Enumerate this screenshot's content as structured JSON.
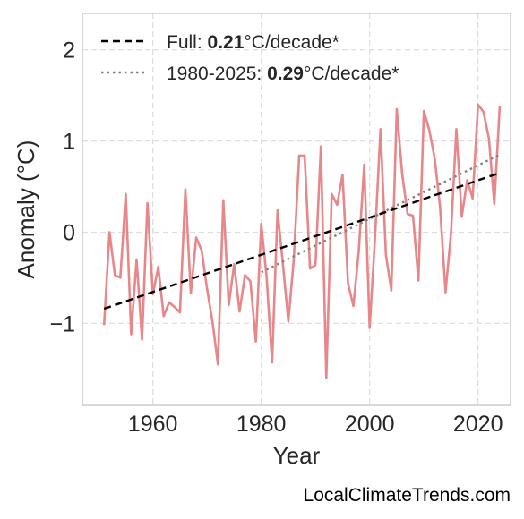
{
  "credit": "LocalClimateTrends.com",
  "colors": {
    "series": "#e8878a",
    "trend_full": "#000000",
    "trend_recent": "#808080",
    "grid": "#dddddd",
    "frame": "#cccccc",
    "text": "#262626"
  },
  "legend": {
    "placement": "top-left",
    "entries": [
      {
        "prefix": "Full: ",
        "value": "0.21",
        "suffix": "°C/decade*"
      },
      {
        "prefix": "1980-2025: ",
        "value": "0.29",
        "suffix": "°C/decade*"
      }
    ]
  },
  "chart_data": {
    "type": "line",
    "title": "",
    "xlabel": "Year",
    "ylabel": "Anomaly (°C)",
    "xlim": [
      1947,
      2026
    ],
    "ylim": [
      -1.9,
      2.4
    ],
    "xticks": [
      1960,
      1980,
      2000,
      2020
    ],
    "xtick_labels": [
      "1960",
      "1980",
      "2000",
      "2020"
    ],
    "yticks": [
      -1,
      0,
      1,
      2
    ],
    "ytick_labels": [
      "−1",
      "0",
      "1",
      "2"
    ],
    "grid": true,
    "series": [
      {
        "x": [
          1951,
          1952,
          1953,
          1954,
          1955,
          1956,
          1957,
          1958,
          1959,
          1960,
          1961,
          1962,
          1963,
          1964,
          1965,
          1966,
          1967,
          1968,
          1969,
          1970,
          1971,
          1972,
          1973,
          1974,
          1975,
          1976,
          1977,
          1978,
          1979,
          1980,
          1981,
          1982,
          1983,
          1984,
          1985,
          1986,
          1987,
          1988,
          1989,
          1990,
          1991,
          1992,
          1993,
          1994,
          1995,
          1996,
          1997,
          1998,
          1999,
          2000,
          2001,
          2002,
          2003,
          2004,
          2005,
          2006,
          2007,
          2008,
          2009,
          2010,
          2011,
          2012,
          2013,
          2014,
          2015,
          2016,
          2017,
          2018,
          2019,
          2020,
          2021,
          2022,
          2023,
          2024
        ],
        "values": [
          -1.02,
          0.0,
          -0.47,
          -0.5,
          0.42,
          -1.12,
          -0.3,
          -1.18,
          0.32,
          -0.68,
          -0.38,
          -0.92,
          -0.77,
          -0.82,
          -0.88,
          0.47,
          -0.67,
          -0.06,
          -0.2,
          -0.62,
          -0.98,
          -1.45,
          0.35,
          -0.8,
          -0.35,
          -0.87,
          -0.47,
          -0.54,
          -1.2,
          0.09,
          -0.5,
          -1.43,
          0.24,
          -0.35,
          -0.98,
          -0.3,
          0.84,
          0.84,
          -0.4,
          -0.36,
          0.94,
          -1.6,
          0.42,
          0.3,
          0.63,
          -0.56,
          -0.81,
          -0.2,
          0.74,
          -1.05,
          -0.05,
          1.13,
          -0.25,
          -0.64,
          1.35,
          0.64,
          0.2,
          0.18,
          -0.53,
          1.33,
          1.12,
          0.81,
          0.27,
          -0.66,
          -0.02,
          1.13,
          0.17,
          0.57,
          0.37,
          1.4,
          1.32,
          1.03,
          0.31,
          1.38
        ]
      },
      {
        "x": [
          1951,
          2024
        ],
        "values": [
          -0.84,
          0.65
        ]
      },
      {
        "x": [
          1980,
          2024
        ],
        "values": [
          -0.44,
          0.85
        ]
      }
    ]
  }
}
